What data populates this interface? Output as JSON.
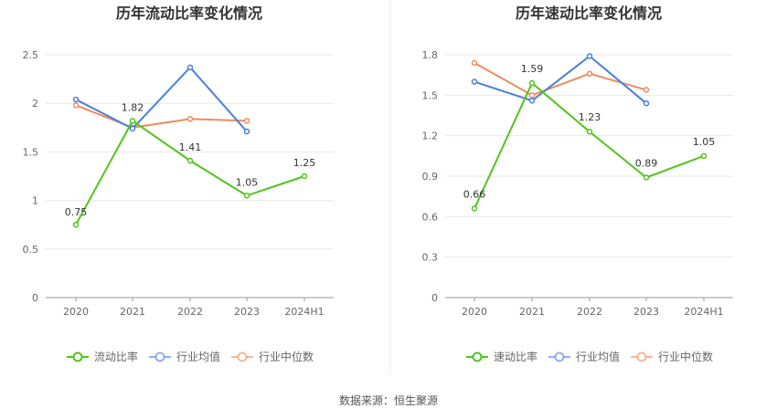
{
  "chart_data": [
    {
      "type": "line",
      "title": "历年流动比率变化情况",
      "categories": [
        "2020",
        "2021",
        "2022",
        "2023",
        "2024H1"
      ],
      "y_ticks": [
        "0",
        "0.5",
        "1",
        "1.5",
        "2",
        "2.5"
      ],
      "ylim": [
        0,
        2.5
      ],
      "grid": true,
      "legend_position": "bottom",
      "series": [
        {
          "name": "流动比率",
          "color": "#52c41a",
          "values": [
            0.75,
            1.82,
            1.41,
            1.05,
            1.25
          ],
          "labels": [
            "0.75",
            "1.82",
            "1.41",
            "1.05",
            "1.25"
          ]
        },
        {
          "name": "行业均值",
          "color": "#4a7fe0",
          "values": [
            2.04,
            1.74,
            2.37,
            1.71,
            null
          ]
        },
        {
          "name": "行业中位数",
          "color": "#f08a5d",
          "values": [
            1.98,
            1.75,
            1.84,
            1.82,
            null
          ]
        }
      ]
    },
    {
      "type": "line",
      "title": "历年速动比率变化情况",
      "categories": [
        "2020",
        "2021",
        "2022",
        "2023",
        "2024H1"
      ],
      "y_ticks": [
        "0",
        "0.3",
        "0.6",
        "0.9",
        "1.2",
        "1.5",
        "1.8"
      ],
      "ylim": [
        0,
        1.8
      ],
      "grid": true,
      "legend_position": "bottom",
      "series": [
        {
          "name": "速动比率",
          "color": "#52c41a",
          "values": [
            0.66,
            1.59,
            1.23,
            0.89,
            1.05
          ],
          "labels": [
            "0.66",
            "1.59",
            "1.23",
            "0.89",
            "1.05"
          ]
        },
        {
          "name": "行业均值",
          "color": "#4a7fe0",
          "values": [
            1.6,
            1.46,
            1.79,
            1.44,
            null
          ]
        },
        {
          "name": "行业中位数",
          "color": "#f08a5d",
          "values": [
            1.74,
            1.5,
            1.66,
            1.54,
            null
          ]
        }
      ]
    }
  ],
  "source_text": "数据来源：恒生聚源"
}
